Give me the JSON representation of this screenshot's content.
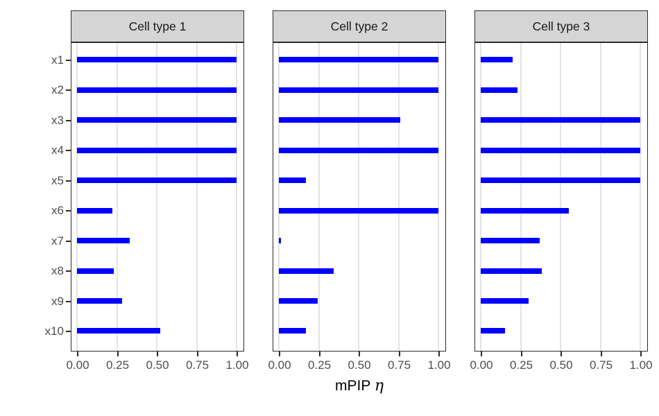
{
  "figure": {
    "xlabel_prefix": "mPIP",
    "xlabel_symbol": "η"
  },
  "chart_data": {
    "type": "bar",
    "orientation": "horizontal",
    "title": "",
    "xlabel": "mPIP η",
    "ylabel": "",
    "categories": [
      "x1",
      "x2",
      "x3",
      "x4",
      "x5",
      "x6",
      "x7",
      "x8",
      "x9",
      "x10"
    ],
    "xlim": [
      0,
      1
    ],
    "x_ticks": [
      "0.00",
      "0.25",
      "0.50",
      "0.75",
      "1.00"
    ],
    "x_tick_values": [
      0,
      0.25,
      0.5,
      0.75,
      1.0
    ],
    "grid": "major-x-only",
    "legend": "none",
    "facets": [
      {
        "label": "Cell type 1",
        "values": [
          1.0,
          1.0,
          1.0,
          1.0,
          1.0,
          0.22,
          0.33,
          0.23,
          0.28,
          0.52
        ]
      },
      {
        "label": "Cell type 2",
        "values": [
          1.0,
          1.0,
          0.76,
          1.0,
          0.17,
          1.0,
          0.01,
          0.34,
          0.24,
          0.17
        ]
      },
      {
        "label": "Cell type 3",
        "values": [
          0.2,
          0.23,
          1.0,
          1.0,
          1.0,
          0.55,
          0.37,
          0.38,
          0.3,
          0.15
        ]
      }
    ],
    "colors": {
      "bar": "#0000ff",
      "gridline": "#e4e4e4",
      "panel_border": "#2b2b2b",
      "strip_fill": "#d5d5d5",
      "axis_text": "#4d4d4d",
      "strip_text": "#1a1a1a"
    }
  }
}
